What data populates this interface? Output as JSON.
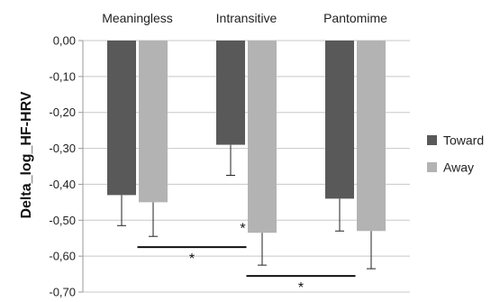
{
  "chart_data": {
    "type": "bar",
    "categories": [
      "Meaningless",
      "Intransitive",
      "Pantomime"
    ],
    "series": [
      {
        "name": "Toward",
        "values": [
          -0.43,
          -0.29,
          -0.44
        ],
        "errors": [
          0.085,
          0.085,
          0.09
        ],
        "color": "#595959"
      },
      {
        "name": "Away",
        "values": [
          -0.45,
          -0.535,
          -0.53
        ],
        "errors": [
          0.095,
          0.09,
          0.105
        ],
        "color": "#b3b3b3"
      }
    ],
    "title": "",
    "xlabel": "",
    "ylabel": "Delta_log_HF-HRV",
    "ylim": [
      -0.7,
      0.0
    ],
    "yticks": [
      0.0,
      -0.1,
      -0.2,
      -0.3,
      -0.4,
      -0.5,
      -0.6,
      -0.7
    ],
    "ytick_labels": [
      "0,00",
      "-0,10",
      "-0,20",
      "-0,30",
      "-0,40",
      "-0,50",
      "-0,60",
      "-0,70"
    ],
    "category_axis_position": "top",
    "grid": true,
    "legend": "right",
    "annotations": [
      {
        "text": "*",
        "type": "marker",
        "category": 1,
        "y": -0.52
      },
      {
        "text": "*",
        "type": "bracket",
        "from_category": 0,
        "to_category": 1,
        "y": -0.575
      },
      {
        "text": "*",
        "type": "bracket",
        "from_category": 1,
        "to_category": 2,
        "y": -0.655
      }
    ]
  }
}
